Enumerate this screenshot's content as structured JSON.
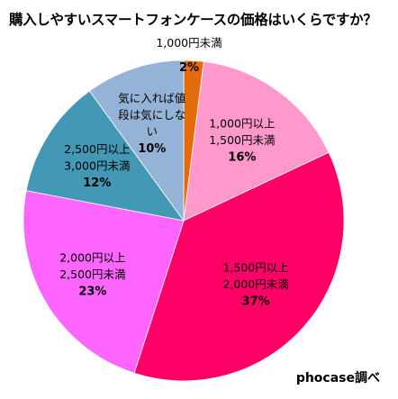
{
  "title": "購入しやすいスマートフォンケースの価格はいくらですか？",
  "source": "phocase調べ",
  "chart_data": {
    "type": "pie",
    "title": "購入しやすいスマートフォンケースの価格はいくらですか？",
    "start_angle_deg": 0,
    "direction": "clockwise",
    "slices": [
      {
        "label": [
          "1,000円未満"
        ],
        "value": 2,
        "value_label": "2%",
        "color": "#E46C0A"
      },
      {
        "label": [
          "1,000円以上",
          "1,500円未満"
        ],
        "value": 16,
        "value_label": "16%",
        "color": "#FF99CC"
      },
      {
        "label": [
          "1,500円以上",
          "2,000円未満"
        ],
        "value": 37,
        "value_label": "37%",
        "color": "#FF0066"
      },
      {
        "label": [
          "2,000円以上",
          "2,500円未満"
        ],
        "value": 23,
        "value_label": "23%",
        "color": "#FF66FF"
      },
      {
        "label": [
          "2,500円以上",
          "3,000円未満"
        ],
        "value": 12,
        "value_label": "12%",
        "color": "#4298B5"
      },
      {
        "label": [
          "気に入れば値",
          "段は気にしな",
          "い"
        ],
        "value": 10,
        "value_label": "10%",
        "color": "#95B3D7"
      }
    ]
  }
}
